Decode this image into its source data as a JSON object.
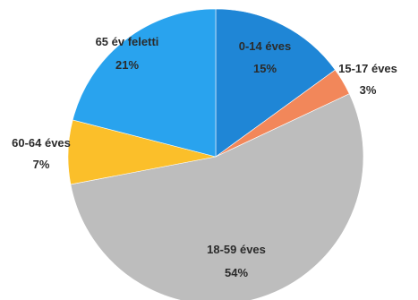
{
  "chart_data": {
    "type": "pie",
    "start_angle_deg": 0,
    "direction": "clockwise",
    "slices": [
      {
        "label": "0-14 éves",
        "percent_label": "15%",
        "value": 15,
        "color": "#1f86d6"
      },
      {
        "label": "15-17 éves",
        "percent_label": "3%",
        "value": 3,
        "color": "#f2875a"
      },
      {
        "label": "18-59 éves",
        "percent_label": "54%",
        "value": 54,
        "color": "#bdbdbd"
      },
      {
        "label": "60-64 éves",
        "percent_label": "7%",
        "value": 7,
        "color": "#fbbf2a"
      },
      {
        "label": "65 év feletti",
        "percent_label": "21%",
        "value": 21,
        "color": "#29a3ee"
      }
    ]
  }
}
